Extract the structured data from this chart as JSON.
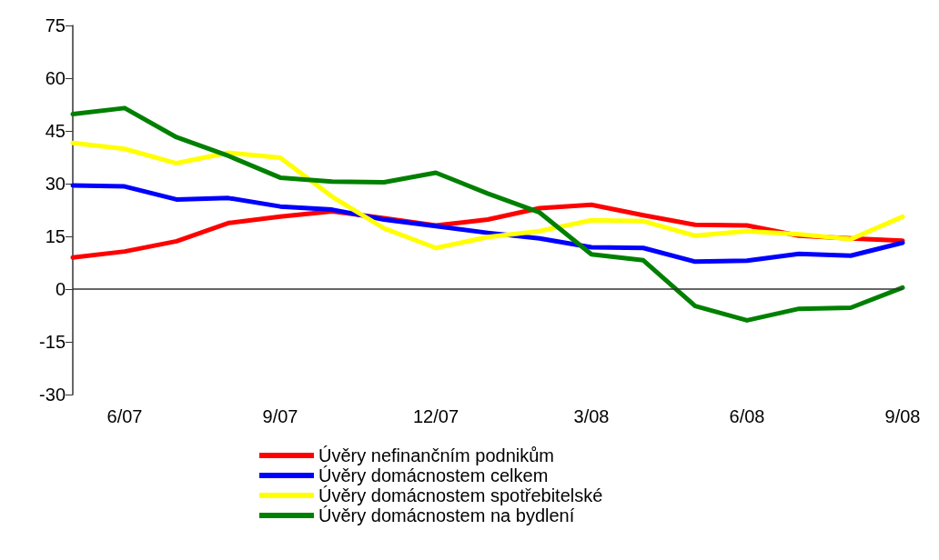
{
  "chart_data": {
    "type": "line",
    "categories": [
      null,
      "6/07",
      null,
      null,
      "9/07",
      null,
      null,
      "12/07",
      null,
      null,
      "3/08",
      null,
      null,
      "6/08",
      null,
      null,
      "9/08"
    ],
    "series": [
      {
        "name": "Úvěry nefinančním podnikům",
        "color": "#ff0000",
        "values": [
          9.0,
          10.7,
          13.6,
          18.8,
          20.6,
          22.1,
          20.2,
          18.1,
          19.8,
          23.0,
          24.0,
          21.0,
          18.3,
          18.1,
          15.2,
          14.4,
          13.8
        ]
      },
      {
        "name": "Úvěry domácnostem celkem",
        "color": "#0000ff",
        "values": [
          29.5,
          29.2,
          25.5,
          25.9,
          23.5,
          22.6,
          19.8,
          17.9,
          16.0,
          14.4,
          11.9,
          11.7,
          7.8,
          8.1,
          10.0,
          9.5,
          13.2
        ]
      },
      {
        "name": "Úvěry domácnostem spotřebitelské",
        "color": "#ffff00",
        "values": [
          41.6,
          39.9,
          35.8,
          38.8,
          37.4,
          26.3,
          17.3,
          11.7,
          14.8,
          16.5,
          19.6,
          19.3,
          15.2,
          16.5,
          15.6,
          14.2,
          20.6
        ]
      },
      {
        "name": "Úvěry domácnostem na bydlení",
        "color": "#008000",
        "values": [
          49.8,
          51.5,
          43.2,
          37.9,
          31.7,
          30.6,
          30.4,
          33.1,
          27.2,
          21.8,
          9.9,
          8.2,
          -4.8,
          -8.9,
          -5.6,
          -5.3,
          0.4
        ]
      }
    ],
    "ylim": [
      -30,
      75
    ],
    "yticks": [
      -30,
      -15,
      0,
      15,
      30,
      45,
      60,
      75
    ],
    "grid": false,
    "ref_lines": [
      {
        "axis": "y",
        "value": 0,
        "color": "#333333"
      }
    ],
    "legend": "bottom",
    "marker": "none",
    "line_style": "solid"
  }
}
